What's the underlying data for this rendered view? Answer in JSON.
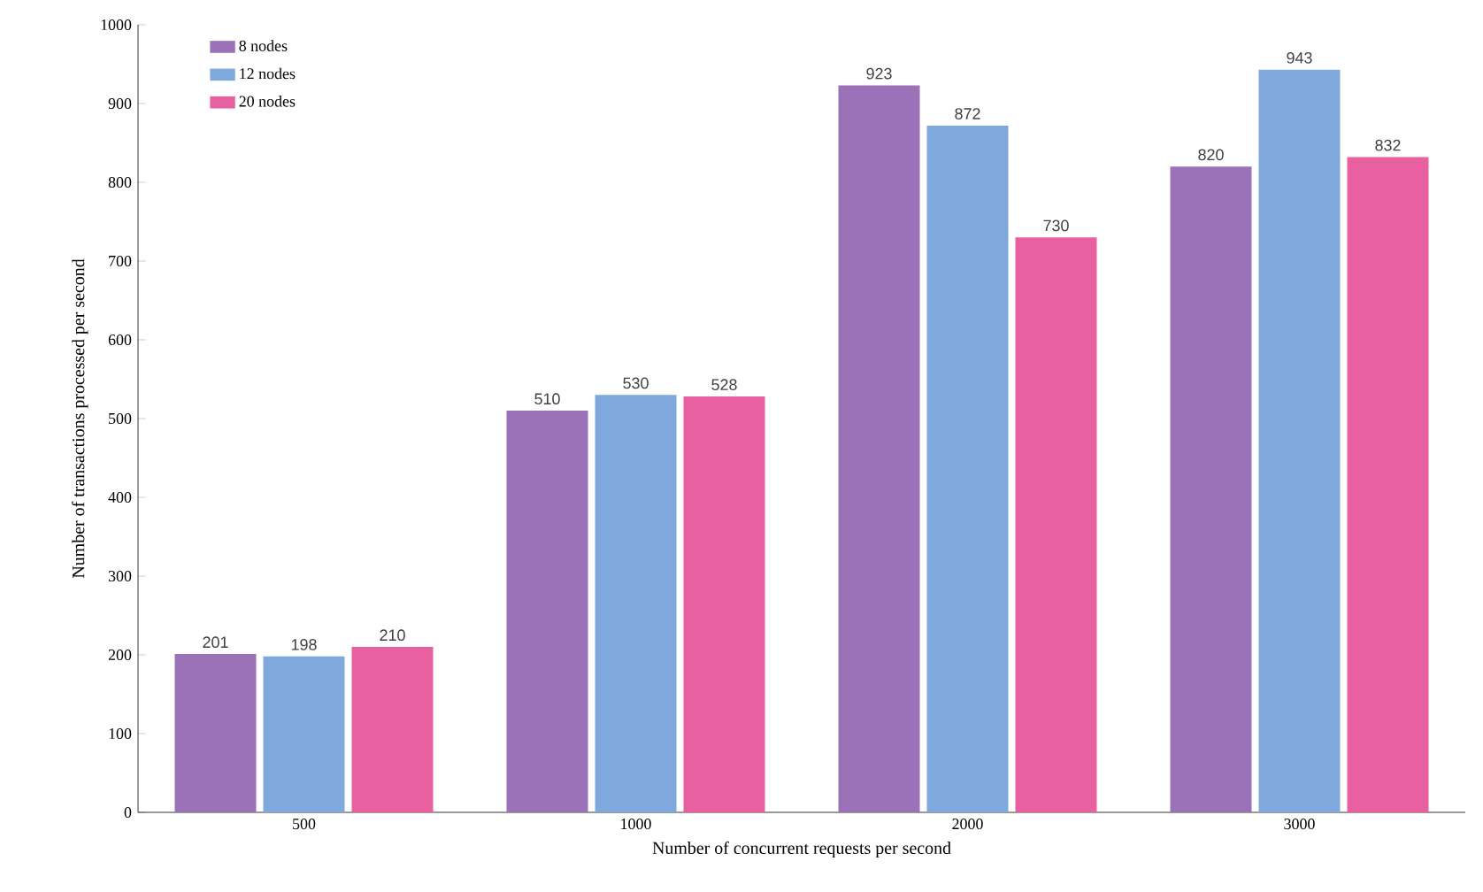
{
  "chart_data": {
    "type": "bar",
    "xlabel": "Number of concurrent requests per second",
    "ylabel": "Number of transactions processed per second",
    "categories": [
      "500",
      "1000",
      "2000",
      "3000"
    ],
    "series": [
      {
        "name": "8 nodes",
        "color": "#9b72b8",
        "values": [
          201,
          510,
          923,
          820
        ]
      },
      {
        "name": "12 nodes",
        "color": "#7fa8dc",
        "values": [
          198,
          530,
          872,
          943
        ]
      },
      {
        "name": "20 nodes",
        "color": "#e8609f",
        "values": [
          210,
          528,
          730,
          832
        ]
      }
    ],
    "ylim": [
      0,
      1000
    ],
    "yticks": [
      0,
      100,
      200,
      300,
      400,
      500,
      600,
      700,
      800,
      900,
      1000
    ],
    "data_labels": true,
    "legend": "top left"
  }
}
